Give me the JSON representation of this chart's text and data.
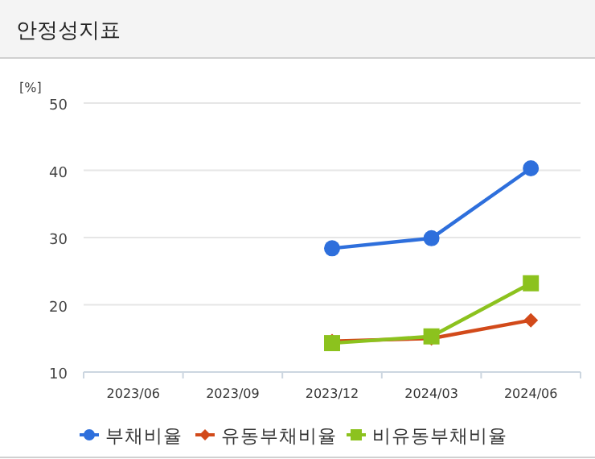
{
  "chart_data": {
    "type": "line",
    "title": "안정성지표",
    "ylabel": "[%]",
    "categories": [
      "2023/06",
      "2023/09",
      "2023/12",
      "2024/03",
      "2024/06"
    ],
    "series": [
      {
        "name": "부채비율",
        "color": "#2e6fdc",
        "marker": "circle",
        "values": [
          null,
          null,
          28.4,
          29.9,
          40.3
        ]
      },
      {
        "name": "유동부채비율",
        "color": "#d24a1a",
        "marker": "diamond",
        "values": [
          null,
          null,
          14.6,
          15.0,
          17.7
        ]
      },
      {
        "name": "비유동부채비율",
        "color": "#8cc21e",
        "marker": "square",
        "values": [
          null,
          null,
          14.3,
          15.3,
          23.2
        ]
      }
    ],
    "ylim": [
      10,
      50
    ],
    "yticks": [
      10,
      20,
      30,
      40,
      50
    ],
    "grid": "y",
    "legend": "bottom"
  }
}
